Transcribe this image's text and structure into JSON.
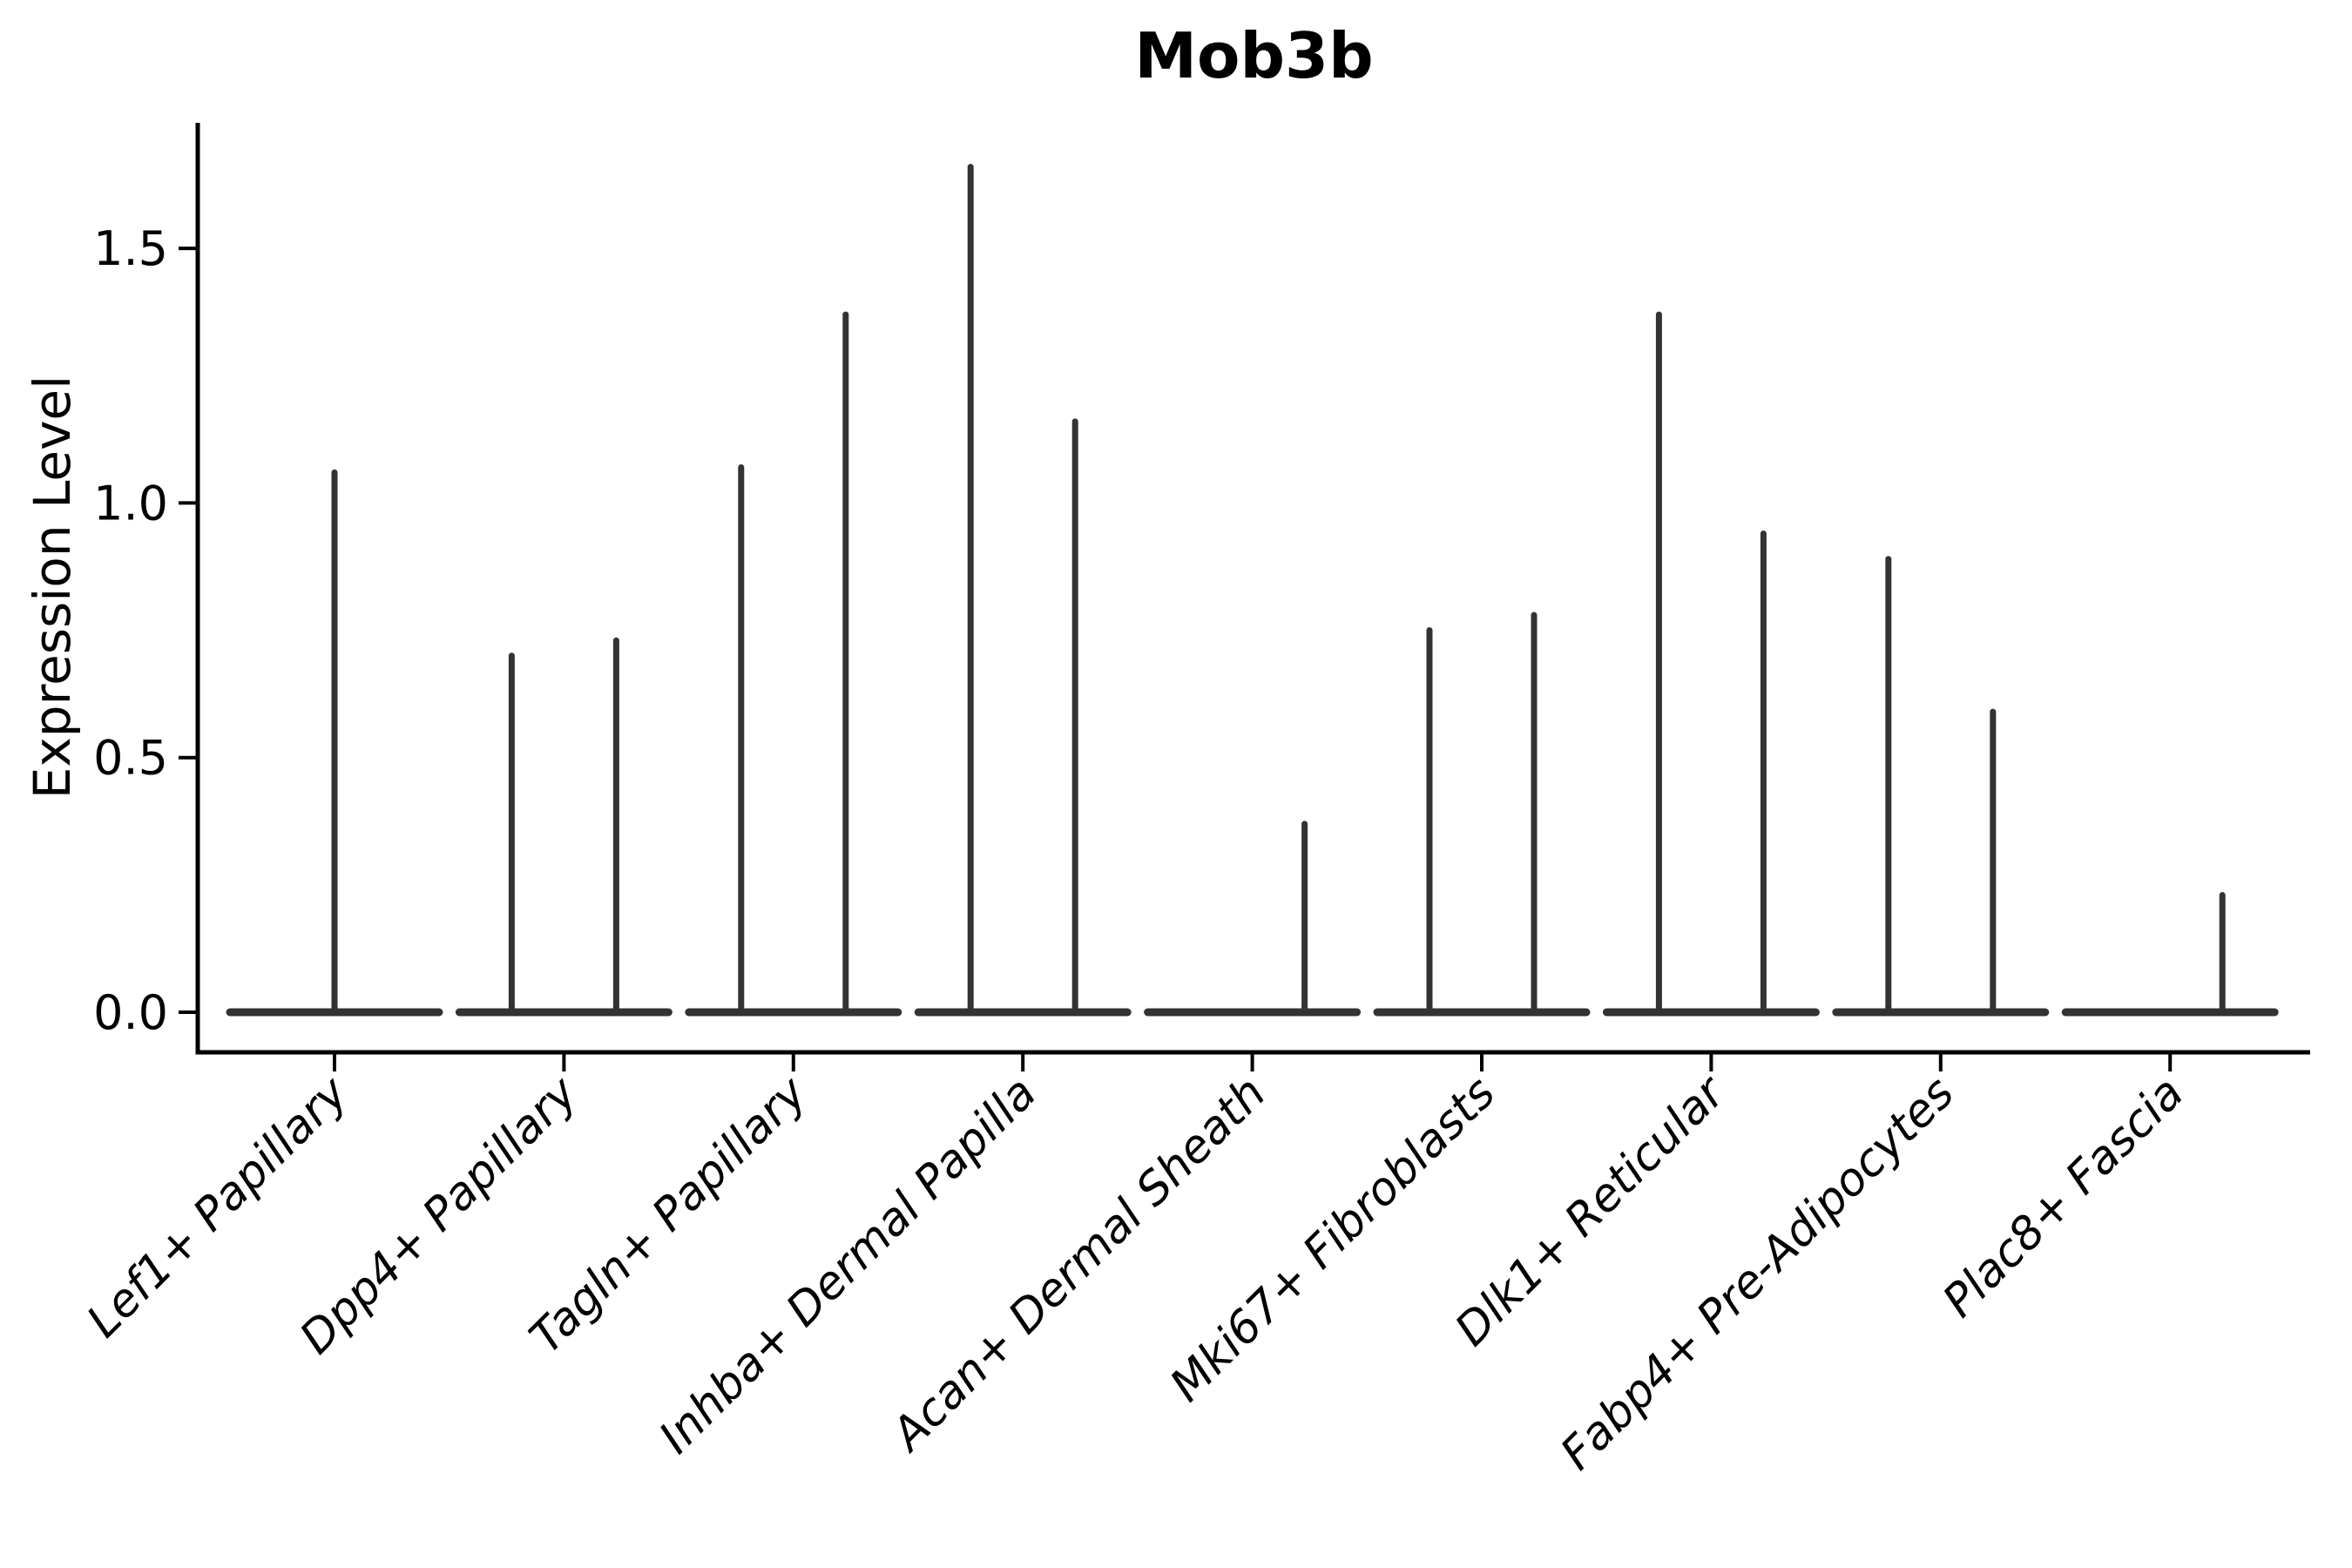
{
  "chart_data": {
    "type": "violin",
    "title": "Mob3b",
    "xlabel": "",
    "ylabel": "Expression Level",
    "yticks": [
      0.0,
      0.5,
      1.0,
      1.5
    ],
    "ytick_labels": [
      "0.0",
      "0.5",
      "1.0",
      "1.5"
    ],
    "ylim": [
      -0.08,
      1.75
    ],
    "grid": false,
    "legend": "none",
    "violin_color": "#333333",
    "axis_color": "#000000",
    "categories": [
      "Lef1+ Papillary",
      "Dpp4+ Papillary",
      "Tagln+ Papillary",
      "Inhba+ Dermal Papilla",
      "Acan+ Dermal Sheath",
      "Mki67+ Fibroblasts",
      "Dlk1+ Reticular",
      "Fabp4+ Pre-Adipocytes",
      "Plac8+ Fascia"
    ],
    "groups": [
      {
        "label": "Lef1+ Papillary",
        "violins": [
          {
            "side": "center",
            "max": 1.06
          }
        ]
      },
      {
        "label": "Dpp4+ Papillary",
        "violins": [
          {
            "side": "left",
            "max": 0.7
          },
          {
            "side": "right",
            "max": 0.73
          }
        ]
      },
      {
        "label": "Tagln+ Papillary",
        "violins": [
          {
            "side": "left",
            "max": 1.07
          },
          {
            "side": "right",
            "max": 1.37
          }
        ]
      },
      {
        "label": "Inhba+ Dermal Papilla",
        "violins": [
          {
            "side": "left",
            "max": 1.66
          },
          {
            "side": "right",
            "max": 1.16
          }
        ]
      },
      {
        "label": "Acan+ Dermal Sheath",
        "violins": [
          {
            "side": "right",
            "max": 0.37
          }
        ]
      },
      {
        "label": "Mki67+ Fibroblasts",
        "violins": [
          {
            "side": "left",
            "max": 0.75
          },
          {
            "side": "right",
            "max": 0.78
          }
        ]
      },
      {
        "label": "Dlk1+ Reticular",
        "violins": [
          {
            "side": "left",
            "max": 1.37
          },
          {
            "side": "right",
            "max": 0.94
          }
        ]
      },
      {
        "label": "Fabp4+ Pre-Adipocytes",
        "violins": [
          {
            "side": "left",
            "max": 0.89
          },
          {
            "side": "right",
            "max": 0.59
          }
        ]
      },
      {
        "label": "Plac8+ Fascia",
        "violins": [
          {
            "side": "right",
            "max": 0.23
          }
        ]
      }
    ],
    "notes": "Each category shows a flat zero-expression violin base with thin density needles rising to the max expression value."
  }
}
